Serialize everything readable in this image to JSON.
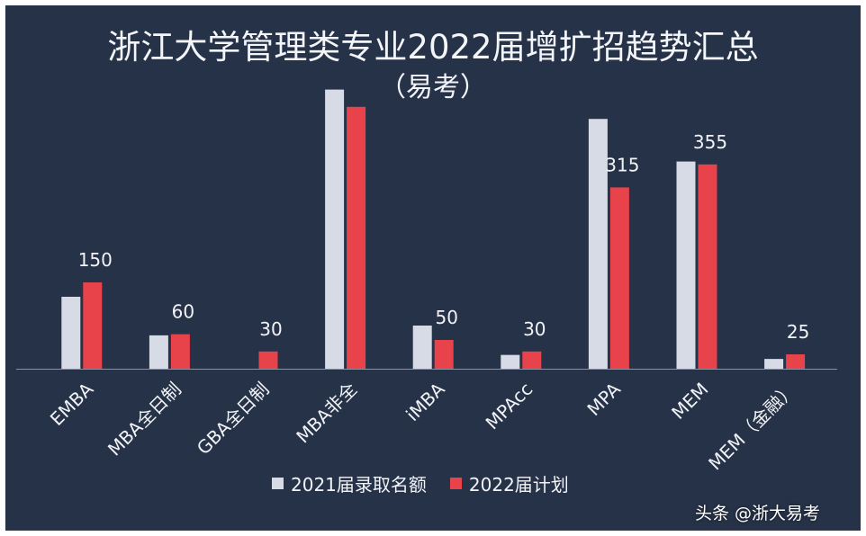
{
  "header": {
    "title_line1": "浙江大学管理类专业2022届增扩招趋势汇总",
    "title_line2": "（易考）"
  },
  "watermark": "头条 @浙大易考",
  "colors": {
    "background": "#263248",
    "series_2021": "#d7dbe6",
    "series_2022": "#e8434a",
    "axis": "#8a93a6",
    "text": "#f1f3f7"
  },
  "chart_data": {
    "type": "bar",
    "title": "浙江大学管理类专业2022届增扩招趋势汇总（易考）",
    "categories": [
      "EMBA",
      "MBA全日制",
      "GBA全日制",
      "MBA非全",
      "iMBA",
      "MPAcc",
      "MPA",
      "MEM",
      "MEM（金融）"
    ],
    "series": [
      {
        "name": "2021届录取名额",
        "values": [
          125,
          58,
          0,
          485,
          75,
          24,
          434,
          360,
          17
        ],
        "labels": [
          "",
          "",
          "",
          "",
          "",
          "",
          "",
          "",
          ""
        ]
      },
      {
        "name": "2022届计划",
        "values": [
          150,
          60,
          30,
          455,
          50,
          30,
          315,
          355,
          25
        ],
        "labels": [
          "150",
          "60",
          "30",
          "",
          "50",
          "30",
          "315",
          "355",
          "25"
        ]
      }
    ],
    "ylim": [
      0,
      500
    ],
    "xlabel": "",
    "ylabel": "",
    "grid": false,
    "legend": "bottom"
  }
}
